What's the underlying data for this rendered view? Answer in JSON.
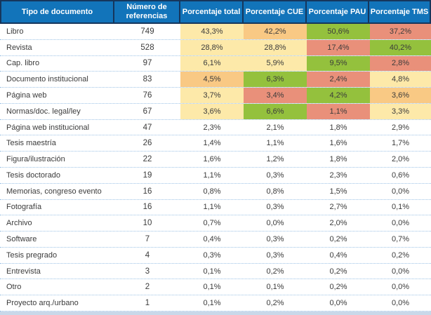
{
  "colors": {
    "header_bg": "#1274BA",
    "header_border": "#16365C",
    "header_text": "#FFFFFF",
    "row_separator": "#9DC3E6",
    "bottom_bar": "#C9D8E9",
    "body_text": "#3B3B3B",
    "yellow": "#FDE9A9",
    "orange": "#F9C984",
    "green": "#94C13D",
    "salmon": "#E9907A"
  },
  "chart_data": {
    "type": "table",
    "columns": [
      "Tipo de documento",
      "Número de referencias",
      "Porcentaje total",
      "Porcentaje CUE",
      "Porcentaje PAU",
      "Porcentaje TMS"
    ],
    "rows": [
      {
        "label": "Libro",
        "refs": 749,
        "values": [
          "43,3%",
          "42,2%",
          "50,6%",
          "37,2%"
        ],
        "cell_colors": [
          "yellow",
          "orange",
          "green",
          "salmon"
        ]
      },
      {
        "label": "Revista",
        "refs": 528,
        "values": [
          "28,8%",
          "28,8%",
          "17,4%",
          "40,2%"
        ],
        "cell_colors": [
          "yellow",
          "yellow",
          "salmon",
          "green"
        ]
      },
      {
        "label": "Cap. libro",
        "refs": 97,
        "values": [
          "6,1%",
          "5,9%",
          "9,5%",
          "2,8%"
        ],
        "cell_colors": [
          "yellow",
          "yellow",
          "green",
          "salmon"
        ]
      },
      {
        "label": "Documento institucional",
        "refs": 83,
        "values": [
          "4,5%",
          "6,3%",
          "2,4%",
          "4,8%"
        ],
        "cell_colors": [
          "orange",
          "green",
          "salmon",
          "yellow"
        ]
      },
      {
        "label": "Página web",
        "refs": 76,
        "values": [
          "3,7%",
          "3,4%",
          "4,2%",
          "3,6%"
        ],
        "cell_colors": [
          "yellow",
          "salmon",
          "green",
          "orange"
        ]
      },
      {
        "label": "Normas/doc. legal/ley",
        "refs": 67,
        "values": [
          "3,6%",
          "6,6%",
          "1,1%",
          "3,3%"
        ],
        "cell_colors": [
          "yellow",
          "green",
          "salmon",
          "yellow"
        ]
      },
      {
        "label": "Página web institucional",
        "refs": 47,
        "values": [
          "2,3%",
          "2,1%",
          "1,8%",
          "2,9%"
        ],
        "cell_colors": [
          "none",
          "none",
          "none",
          "none"
        ]
      },
      {
        "label": "Tesis maestría",
        "refs": 26,
        "values": [
          "1,4%",
          "1,1%",
          "1,6%",
          "1,7%"
        ],
        "cell_colors": [
          "none",
          "none",
          "none",
          "none"
        ]
      },
      {
        "label": "Figura/ilustración",
        "refs": 22,
        "values": [
          "1,6%",
          "1,2%",
          "1,8%",
          "2,0%"
        ],
        "cell_colors": [
          "none",
          "none",
          "none",
          "none"
        ]
      },
      {
        "label": "Tesis doctorado",
        "refs": 19,
        "values": [
          "1,1%",
          "0,3%",
          "2,3%",
          "0,6%"
        ],
        "cell_colors": [
          "none",
          "none",
          "none",
          "none"
        ]
      },
      {
        "label": "Memorias, congreso evento",
        "refs": 16,
        "values": [
          "0,8%",
          "0,8%",
          "1,5%",
          "0,0%"
        ],
        "cell_colors": [
          "none",
          "none",
          "none",
          "none"
        ]
      },
      {
        "label": "Fotografía",
        "refs": 16,
        "values": [
          "1,1%",
          "0,3%",
          "2,7%",
          "0,1%"
        ],
        "cell_colors": [
          "none",
          "none",
          "none",
          "none"
        ]
      },
      {
        "label": "Archivo",
        "refs": 10,
        "values": [
          "0,7%",
          "0,0%",
          "2,0%",
          "0,0%"
        ],
        "cell_colors": [
          "none",
          "none",
          "none",
          "none"
        ]
      },
      {
        "label": "Software",
        "refs": 7,
        "values": [
          "0,4%",
          "0,3%",
          "0,2%",
          "0,7%"
        ],
        "cell_colors": [
          "none",
          "none",
          "none",
          "none"
        ]
      },
      {
        "label": "Tesis pregrado",
        "refs": 4,
        "values": [
          "0,3%",
          "0,3%",
          "0,4%",
          "0,2%"
        ],
        "cell_colors": [
          "none",
          "none",
          "none",
          "none"
        ]
      },
      {
        "label": "Entrevista",
        "refs": 3,
        "values": [
          "0,1%",
          "0,2%",
          "0,2%",
          "0,0%"
        ],
        "cell_colors": [
          "none",
          "none",
          "none",
          "none"
        ]
      },
      {
        "label": "Otro",
        "refs": 2,
        "values": [
          "0,1%",
          "0,1%",
          "0,2%",
          "0,0%"
        ],
        "cell_colors": [
          "none",
          "none",
          "none",
          "none"
        ]
      },
      {
        "label": "Proyecto arq./urbano",
        "refs": 1,
        "values": [
          "0,1%",
          "0,2%",
          "0,0%",
          "0,0%"
        ],
        "cell_colors": [
          "none",
          "none",
          "none",
          "none"
        ]
      }
    ]
  }
}
